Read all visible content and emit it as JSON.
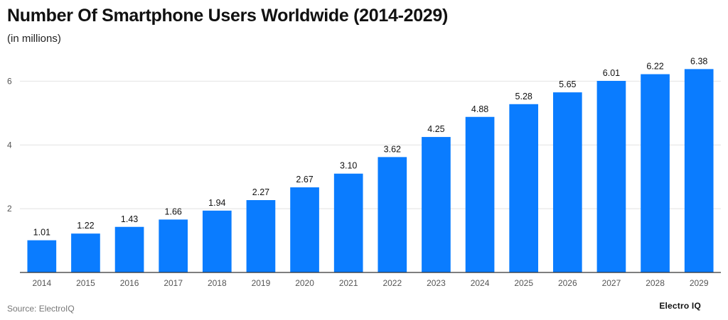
{
  "header": {
    "title": "Number Of Smartphone Users Worldwide (2014-2029)",
    "subtitle": "(in millions)"
  },
  "footer": {
    "source": "Source: ElectroIQ",
    "brand": "Electro IQ"
  },
  "colors": {
    "bar": "#0a7cff",
    "grid": "#e2e2e2",
    "axis": "#333333"
  },
  "chart_data": {
    "type": "bar",
    "title": "Number Of Smartphone Users Worldwide (2014-2029)",
    "subtitle": "(in millions)",
    "categories": [
      "2014",
      "2015",
      "2016",
      "2017",
      "2018",
      "2019",
      "2020",
      "2021",
      "2022",
      "2023",
      "2024",
      "2025",
      "2026",
      "2027",
      "2028",
      "2029"
    ],
    "values": [
      1.01,
      1.22,
      1.43,
      1.66,
      1.94,
      2.27,
      2.67,
      3.1,
      3.62,
      4.25,
      4.88,
      5.28,
      5.65,
      6.01,
      6.22,
      6.38
    ],
    "value_labels": [
      "1.01",
      "1.22",
      "1.43",
      "1.66",
      "1.94",
      "2.27",
      "2.67",
      "3.10",
      "3.62",
      "4.25",
      "4.88",
      "5.28",
      "5.65",
      "6.01",
      "6.22",
      "6.38"
    ],
    "yticks": [
      2,
      4,
      6
    ],
    "ytick_labels": [
      "2",
      "4",
      "6"
    ],
    "ylim": [
      0,
      6.9
    ],
    "grid": true,
    "legend": "none"
  }
}
